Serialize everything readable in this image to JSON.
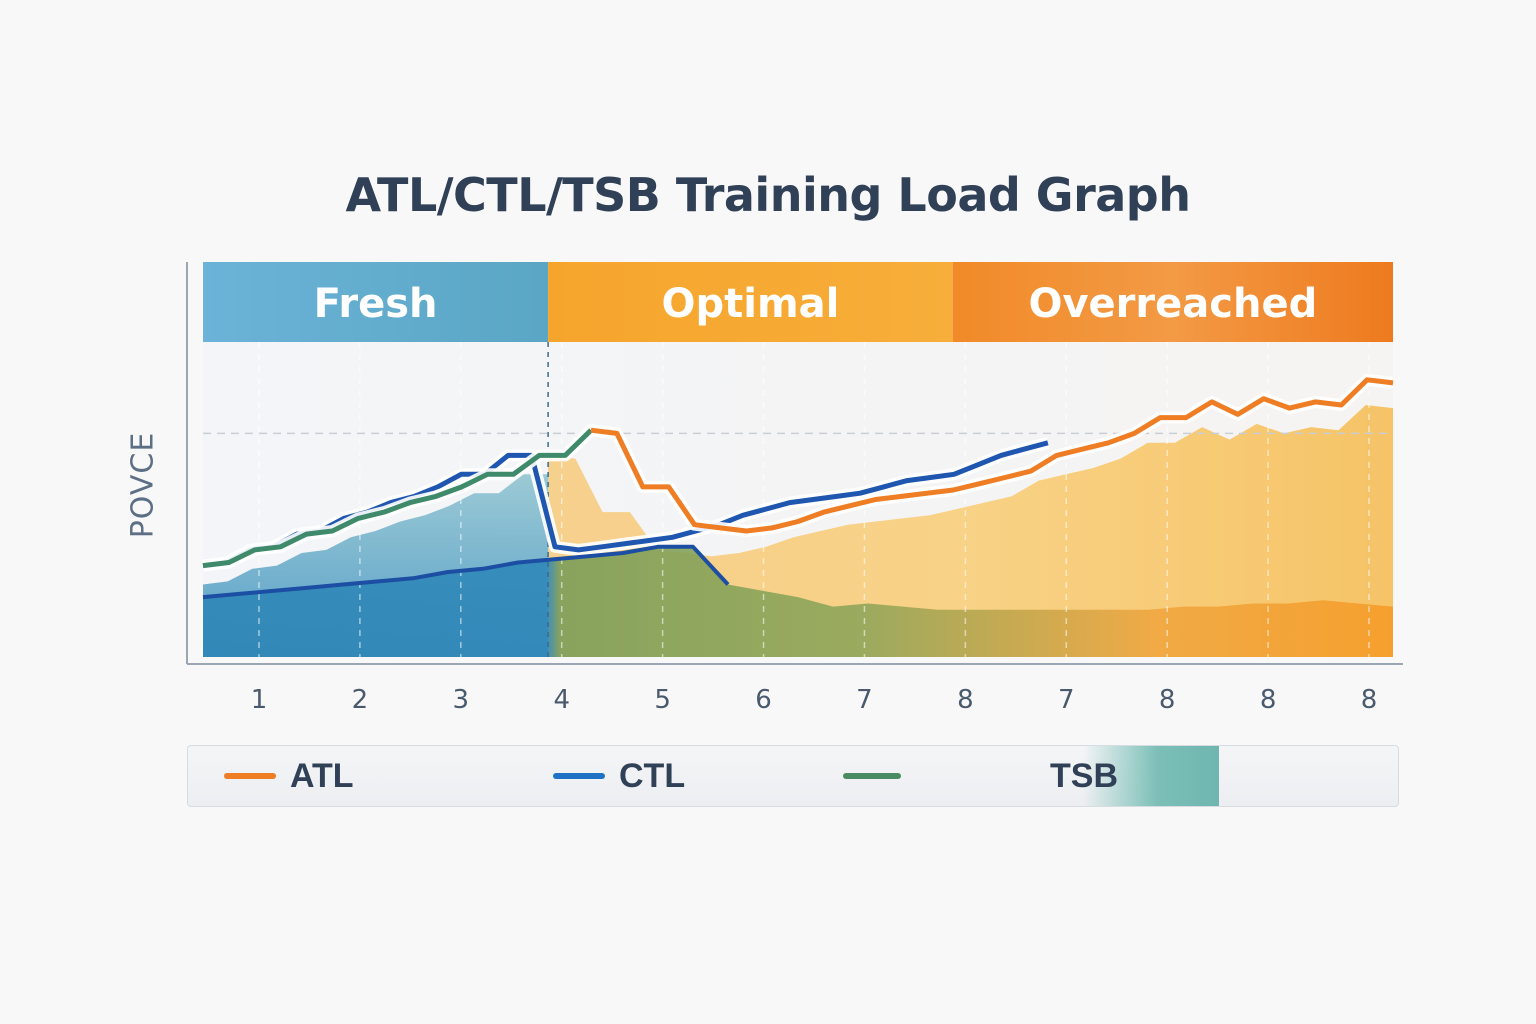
{
  "title": "ATL/CTL/TSB Training Load Graph",
  "chart_data": {
    "type": "line",
    "title": "ATL/CTL/TSB Training Load Graph",
    "ylabel": "POVCE",
    "xlabel": "",
    "ylim": [
      0,
      100
    ],
    "grid": true,
    "x_ticks": [
      "1",
      "2",
      "3",
      "4",
      "5",
      "6",
      "7",
      "8",
      "7",
      "8",
      "8",
      "8"
    ],
    "zones": [
      {
        "label": "Fresh",
        "color": "#6fb0d4",
        "from": 0,
        "to": 0.29
      },
      {
        "label": "Optimal",
        "color": "#f4a82e",
        "from": 0.29,
        "to": 0.63
      },
      {
        "label": "Overreached",
        "color": "#f08a2a",
        "from": 0.63,
        "to": 1.0
      }
    ],
    "series": [
      {
        "name": "ATL",
        "color": "#ee7d24",
        "values": [
          29,
          30,
          34,
          35,
          39,
          40,
          44,
          46,
          49,
          51,
          54,
          58,
          58,
          64,
          64,
          72,
          71,
          54,
          54,
          42,
          41,
          40,
          41,
          43,
          46,
          48,
          50,
          51,
          52,
          53,
          55,
          57,
          59,
          64,
          66,
          68,
          71,
          76,
          76,
          81,
          77,
          82,
          79,
          81,
          80,
          88,
          87
        ]
      },
      {
        "name": "CTL",
        "color": "#1f57b0",
        "values": [
          29,
          30,
          34,
          35,
          39,
          40,
          44,
          46,
          49,
          51,
          54,
          58,
          58,
          64,
          64,
          35,
          34,
          35,
          36,
          37,
          38,
          40,
          42,
          45,
          47,
          49,
          50,
          51,
          52,
          54,
          56,
          57,
          58,
          61,
          64,
          66,
          68
        ]
      },
      {
        "name": "TSB",
        "color": "#4a8b63",
        "values": [
          19,
          20,
          21,
          22,
          23,
          24,
          25,
          27,
          28,
          30,
          31,
          32,
          33,
          35,
          35,
          23,
          21,
          19,
          16,
          17,
          16,
          15,
          15,
          15,
          15,
          15,
          15,
          15,
          16,
          16,
          17,
          17,
          18,
          17,
          16
        ]
      }
    ],
    "legend": {
      "placement": "bottom",
      "items": [
        "ATL",
        "CTL",
        "TSB"
      ]
    }
  }
}
